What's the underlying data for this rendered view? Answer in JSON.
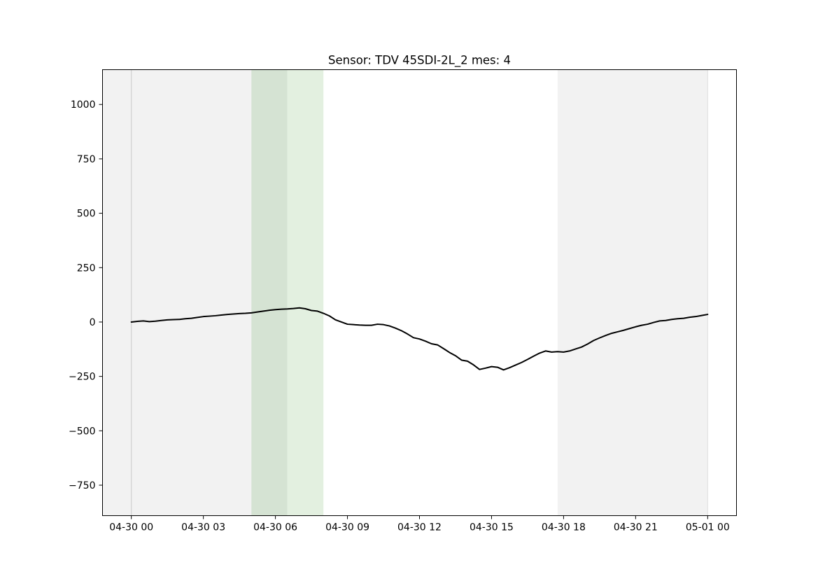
{
  "chart_data": {
    "type": "line",
    "title": "Sensor: TDV 45SDI-2L_2 mes: 4",
    "xlabel": "",
    "ylabel": "",
    "x_axis_type": "time",
    "xlim": [
      "2024-04-29T22:48",
      "2024-05-01T01:12"
    ],
    "ylim": [
      -890,
      1160
    ],
    "x_ticks": [
      "2024-04-30T00:00",
      "2024-04-30T03:00",
      "2024-04-30T06:00",
      "2024-04-30T09:00",
      "2024-04-30T12:00",
      "2024-04-30T15:00",
      "2024-04-30T18:00",
      "2024-04-30T21:00",
      "2024-05-01T00:00"
    ],
    "x_tick_labels": [
      "04-30 00",
      "04-30 03",
      "04-30 06",
      "04-30 09",
      "04-30 12",
      "04-30 15",
      "04-30 18",
      "04-30 21",
      "05-01 00"
    ],
    "y_ticks": [
      -750,
      -500,
      -250,
      0,
      250,
      500,
      750,
      1000
    ],
    "y_tick_labels": [
      "−750",
      "−500",
      "−250",
      "0",
      "250",
      "500",
      "750",
      "1000"
    ],
    "grid": false,
    "legend": "none",
    "line_color": "#000000",
    "shaded_regions": [
      {
        "start": "2024-04-29T22:48",
        "end": "2024-04-30T06:30",
        "color": "#f2f2f2"
      },
      {
        "start": "2024-04-30T05:00",
        "end": "2024-04-30T06:30",
        "color": "#d5e3d3"
      },
      {
        "start": "2024-04-30T06:30",
        "end": "2024-04-30T08:00",
        "color": "#e3f0e0"
      },
      {
        "start": "2024-04-30T17:45",
        "end": "2024-05-01T00:00",
        "color": "#f2f2f2"
      }
    ],
    "vertical_lines": [
      {
        "x": "2024-04-30T00:00",
        "color": "#d6d6d6"
      },
      {
        "x": "2024-05-01T00:00",
        "color": "#e6e6e6"
      }
    ],
    "series": [
      {
        "x": [
          "2024-04-30T00:00",
          "2024-04-30T00:15",
          "2024-04-30T00:30",
          "2024-04-30T00:45",
          "2024-04-30T01:00",
          "2024-04-30T01:15",
          "2024-04-30T01:30",
          "2024-04-30T01:45",
          "2024-04-30T02:00",
          "2024-04-30T02:15",
          "2024-04-30T02:30",
          "2024-04-30T02:45",
          "2024-04-30T03:00",
          "2024-04-30T03:15",
          "2024-04-30T03:30",
          "2024-04-30T03:45",
          "2024-04-30T04:00",
          "2024-04-30T04:15",
          "2024-04-30T04:30",
          "2024-04-30T04:45",
          "2024-04-30T05:00",
          "2024-04-30T05:15",
          "2024-04-30T05:30",
          "2024-04-30T05:45",
          "2024-04-30T06:00",
          "2024-04-30T06:15",
          "2024-04-30T06:30",
          "2024-04-30T06:45",
          "2024-04-30T07:00",
          "2024-04-30T07:15",
          "2024-04-30T07:30",
          "2024-04-30T07:45",
          "2024-04-30T08:00",
          "2024-04-30T08:15",
          "2024-04-30T08:30",
          "2024-04-30T08:45",
          "2024-04-30T09:00",
          "2024-04-30T09:15",
          "2024-04-30T09:30",
          "2024-04-30T09:45",
          "2024-04-30T10:00",
          "2024-04-30T10:15",
          "2024-04-30T10:30",
          "2024-04-30T10:45",
          "2024-04-30T11:00",
          "2024-04-30T11:15",
          "2024-04-30T11:30",
          "2024-04-30T11:45",
          "2024-04-30T12:00",
          "2024-04-30T12:15",
          "2024-04-30T12:30",
          "2024-04-30T12:45",
          "2024-04-30T13:00",
          "2024-04-30T13:15",
          "2024-04-30T13:30",
          "2024-04-30T13:45",
          "2024-04-30T14:00",
          "2024-04-30T14:15",
          "2024-04-30T14:30",
          "2024-04-30T14:45",
          "2024-04-30T15:00",
          "2024-04-30T15:15",
          "2024-04-30T15:30",
          "2024-04-30T15:45",
          "2024-04-30T16:00",
          "2024-04-30T16:15",
          "2024-04-30T16:30",
          "2024-04-30T16:45",
          "2024-04-30T17:00",
          "2024-04-30T17:15",
          "2024-04-30T17:30",
          "2024-04-30T17:45",
          "2024-04-30T18:00",
          "2024-04-30T18:15",
          "2024-04-30T18:30",
          "2024-04-30T18:45",
          "2024-04-30T19:00",
          "2024-04-30T19:15",
          "2024-04-30T19:30",
          "2024-04-30T19:45",
          "2024-04-30T20:00",
          "2024-04-30T20:15",
          "2024-04-30T20:30",
          "2024-04-30T20:45",
          "2024-04-30T21:00",
          "2024-04-30T21:15",
          "2024-04-30T21:30",
          "2024-04-30T21:45",
          "2024-04-30T22:00",
          "2024-04-30T22:15",
          "2024-04-30T22:30",
          "2024-04-30T22:45",
          "2024-04-30T23:00",
          "2024-04-30T23:15",
          "2024-04-30T23:30",
          "2024-04-30T23:45",
          "2024-05-01T00:00"
        ],
        "y": [
          0,
          3,
          5,
          2,
          4,
          7,
          10,
          11,
          12,
          15,
          17,
          21,
          25,
          27,
          29,
          32,
          35,
          37,
          39,
          40,
          42,
          46,
          50,
          54,
          57,
          59,
          60,
          62,
          65,
          61,
          53,
          50,
          40,
          28,
          10,
          0,
          -10,
          -12,
          -14,
          -15,
          -15,
          -10,
          -12,
          -18,
          -28,
          -40,
          -55,
          -72,
          -78,
          -88,
          -100,
          -105,
          -122,
          -140,
          -155,
          -175,
          -180,
          -197,
          -218,
          -212,
          -205,
          -208,
          -220,
          -210,
          -198,
          -186,
          -172,
          -157,
          -143,
          -133,
          -138,
          -136,
          -138,
          -133,
          -124,
          -115,
          -101,
          -85,
          -73,
          -62,
          -52,
          -45,
          -38,
          -30,
          -22,
          -15,
          -10,
          -2,
          5,
          7,
          12,
          15,
          17,
          22,
          25,
          30,
          35
        ]
      }
    ]
  }
}
